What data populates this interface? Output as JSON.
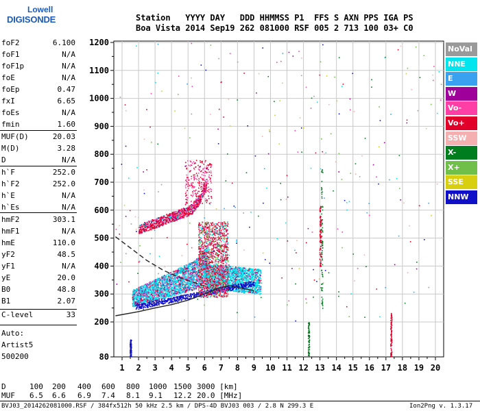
{
  "logo": {
    "line1": "Lowell",
    "line2": "DIGISONDE"
  },
  "header": {
    "row1": "Station   YYYY DAY   DDD HHMMSS P1  FFS S AXN PPS IGA PS",
    "row2": "Boa Vista 2014 Sep19 262 081000 RSF 005 2 713 100 03+ C0"
  },
  "params": [
    {
      "name": "foF2",
      "value": "6.100"
    },
    {
      "name": "foF1",
      "value": "N/A"
    },
    {
      "name": "foF1p",
      "value": "N/A"
    },
    {
      "name": "foE",
      "value": "N/A"
    },
    {
      "name": "foEp",
      "value": "0.47"
    },
    {
      "name": "fxI",
      "value": "6.65"
    },
    {
      "name": "foEs",
      "value": "N/A"
    },
    {
      "name": "fmin",
      "value": "1.60"
    },
    {
      "name": "MUF(D)",
      "value": "20.03"
    },
    {
      "name": "M(D)",
      "value": "3.28"
    },
    {
      "name": "D",
      "value": "N/A"
    },
    {
      "name": "h`F",
      "value": "252.0"
    },
    {
      "name": "h`F2",
      "value": "252.0"
    },
    {
      "name": "h`E",
      "value": "N/A"
    },
    {
      "name": "h`Es",
      "value": "N/A"
    },
    {
      "name": "hmF2",
      "value": "303.1"
    },
    {
      "name": "hmF1",
      "value": "N/A"
    },
    {
      "name": "hmE",
      "value": "110.0"
    },
    {
      "name": "yF2",
      "value": "48.5"
    },
    {
      "name": "yF1",
      "value": "N/A"
    },
    {
      "name": "yE",
      "value": "20.0"
    },
    {
      "name": "B0",
      "value": "48.8"
    },
    {
      "name": "B1",
      "value": "2.07"
    },
    {
      "name": "C-level",
      "value": "33"
    }
  ],
  "auto": {
    "line1": "Auto:",
    "line2": "Artist5",
    "line3": "500200"
  },
  "legend": [
    {
      "label": "NoVal",
      "color": "#9a9a9a"
    },
    {
      "label": "NNE",
      "color": "#00e5ee"
    },
    {
      "label": "E",
      "color": "#3aa0f0"
    },
    {
      "label": "W",
      "color": "#a0009a"
    },
    {
      "label": "Vo-",
      "color": "#ff3fa6"
    },
    {
      "label": "Vo+",
      "color": "#e0002a"
    },
    {
      "label": "SSW",
      "color": "#f4b0b0"
    },
    {
      "label": "X-",
      "color": "#007d1e"
    },
    {
      "label": "X+",
      "color": "#6fbf4a"
    },
    {
      "label": "SSE",
      "color": "#d8cf10"
    },
    {
      "label": "NNW",
      "color": "#1010c8"
    }
  ],
  "footer": {
    "d_label": "D",
    "d_values": [
      "100",
      "200",
      "400",
      "600",
      "800",
      "1000",
      "1500",
      "3000 [km]"
    ],
    "muf_label": "MUF",
    "muf_values": [
      "6.5",
      "6.6",
      "6.9",
      "7.4",
      "8.1",
      "9.1",
      "12.2",
      "20.0 [MHz]"
    ],
    "file_info": "BVJ03_2014262081000.RSF / 384fx512h 50 kHz 2.5 km / DPS-4D BVJ03 003 / 2.8 N 299.3 E",
    "version": "Ion2Png v. 1.3.17"
  },
  "chart_data": {
    "type": "scatter",
    "x_ticks": [
      1,
      2,
      3,
      4,
      5,
      6,
      7,
      8,
      9,
      10,
      11,
      12,
      13,
      14,
      15,
      16,
      17,
      18,
      19,
      20
    ],
    "y_ticks": [
      80,
      200,
      300,
      400,
      500,
      600,
      700,
      800,
      900,
      1000,
      1100,
      1200
    ],
    "xlim": [
      0.5,
      20.5
    ],
    "ylim": [
      200,
      1200
    ],
    "grid": true,
    "legend_position": "right",
    "clusters": [
      {
        "name": "F-trace O",
        "x_range": [
          1.6,
          6.2
        ],
        "y_base": [
          255,
          330
        ],
        "color": "#00e5ee"
      },
      {
        "name": "F-trace X",
        "x_range": [
          6.2,
          9.4
        ],
        "y_base": [
          330,
          390
        ],
        "color": "#00e5ee"
      },
      {
        "name": "second hop",
        "x_range": [
          2.0,
          6.0
        ],
        "y_base": [
          515,
          620
        ],
        "color": "#e0002a"
      },
      {
        "name": "spread",
        "x_range": [
          5.5,
          7.4
        ],
        "y_base": [
          280,
          560
        ],
        "color": "#e0002a"
      }
    ],
    "profile_curves": [
      {
        "name": "solid",
        "points": [
          [
            0.6,
            222
          ],
          [
            2,
            237
          ],
          [
            3,
            250
          ],
          [
            4,
            262
          ],
          [
            5,
            278
          ],
          [
            6,
            300
          ],
          [
            6.8,
            320
          ],
          [
            7.5,
            330
          ],
          [
            9,
            312
          ]
        ]
      },
      {
        "name": "dashed",
        "points": [
          [
            0.6,
            505
          ],
          [
            1.5,
            465
          ],
          [
            2.5,
            420
          ],
          [
            3.5,
            385
          ],
          [
            4.5,
            358
          ],
          [
            5.5,
            338
          ],
          [
            6.2,
            325
          ]
        ]
      }
    ]
  }
}
